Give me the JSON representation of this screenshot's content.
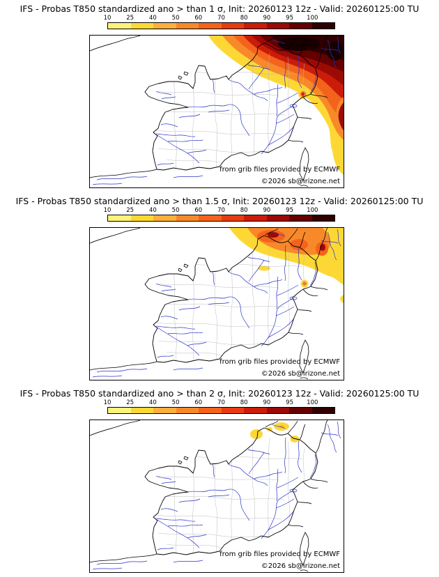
{
  "colorbar": {
    "ticks": [
      "10",
      "25",
      "40",
      "50",
      "60",
      "70",
      "80",
      "90",
      "95",
      "100"
    ],
    "colors": [
      "#fef37a",
      "#fdd835",
      "#fbb03b",
      "#f8892a",
      "#f4631c",
      "#e93b12",
      "#cb1c0a",
      "#9c0a05",
      "#640000",
      "#2e0000"
    ]
  },
  "panels": [
    {
      "title": "IFS - Probas T850  standardized ano > than 1 σ, Init: 20260123 12z - Valid: 20260125:00 TU",
      "attribution": "from grib files provided by ECMWF",
      "copyright": "©2026 sb@irizone.net"
    },
    {
      "title": "IFS - Probas T850  standardized ano > than 1.5 σ, Init: 20260123 12z - Valid: 20260125:00 TU",
      "attribution": "from grib files provided by ECMWF",
      "copyright": "©2026 sb@irizone.net"
    },
    {
      "title": "IFS - Probas T850  standardized ano > than 2 σ, Init: 20260123 12z - Valid: 20260125:00 TU",
      "attribution": "from grib files provided by ECMWF",
      "copyright": "©2026 sb@irizone.net"
    }
  ],
  "chart_data": [
    {
      "type": "heatmap",
      "subtype": "geographic-probability-map",
      "region": "France",
      "variable": "IFS Probas T850 standardized anomaly > 1 σ",
      "init": "20260123 12z",
      "valid": "20260125:00 TU",
      "scale_percent": [
        10,
        25,
        40,
        50,
        60,
        70,
        80,
        90,
        95,
        100
      ],
      "observed_pattern": "Large maximum over northeast France, Benelux and Germany with core values 95-100%, decreasing yellow/orange fringe southwest; streak of 25-80% along eastern border down to the southeast; isolated 50-90% spot near the Alps/Jura"
    },
    {
      "type": "heatmap",
      "subtype": "geographic-probability-map",
      "region": "France",
      "variable": "IFS Probas T850 standardized anomaly > 1.5 σ",
      "init": "20260123 12z",
      "valid": "20260125:00 TU",
      "scale_percent": [
        10,
        25,
        40,
        50,
        60,
        70,
        80,
        90,
        95,
        100
      ],
      "observed_pattern": "Smaller maximum over northeast France and Germany, cores 70-95%, orange 40-60% band, yellow 10-25% fringe; small isolated 10-40% spot near the Jura"
    },
    {
      "type": "heatmap",
      "subtype": "geographic-probability-map",
      "region": "France",
      "variable": "IFS Probas T850 standardized anomaly > 2 σ",
      "init": "20260123 12z",
      "valid": "20260125:00 TU",
      "scale_percent": [
        10,
        25,
        40,
        50,
        60,
        70,
        80,
        90,
        95,
        100
      ],
      "observed_pattern": "Only a few isolated yellow spots of 10-25% over the far northeast"
    }
  ]
}
